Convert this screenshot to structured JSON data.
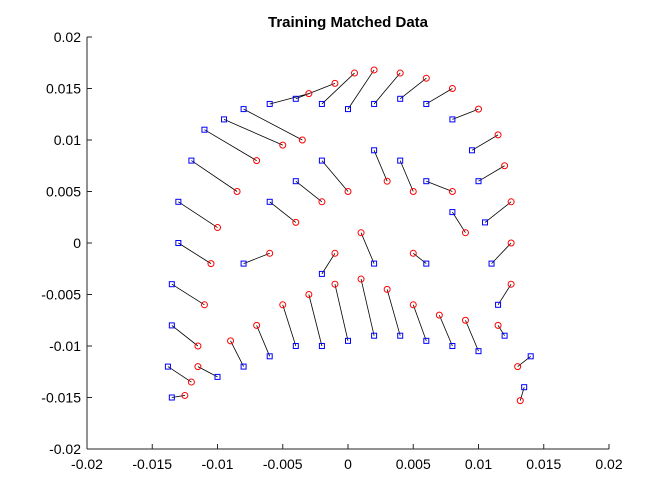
{
  "chart_data": {
    "type": "matched-scatter",
    "title": "Training Matched Data",
    "xlim": [
      -0.02,
      0.02
    ],
    "ylim": [
      -0.02,
      0.02
    ],
    "xticks": [
      -0.02,
      -0.015,
      -0.01,
      -0.005,
      0,
      0.005,
      0.01,
      0.015,
      0.02
    ],
    "yticks": [
      -0.02,
      -0.015,
      -0.01,
      -0.005,
      0,
      0.005,
      0.01,
      0.015,
      0.02
    ],
    "line_color": "#000000",
    "series": [
      {
        "marker": "square",
        "color": "#0000ff",
        "x": [
          -0.0135,
          -0.0138,
          -0.0135,
          -0.0135,
          -0.013,
          -0.013,
          -0.012,
          -0.011,
          -0.0095,
          -0.008,
          -0.006,
          -0.004,
          -0.002,
          0,
          0.002,
          0.004,
          0.006,
          0.008,
          0.0095,
          0.01,
          0.0105,
          0.011,
          0.0115,
          0.012,
          0.014,
          0.0135,
          0.01,
          0.008,
          0.006,
          0.004,
          0.002,
          0,
          -0.002,
          -0.004,
          -0.006,
          -0.008,
          -0.01,
          -0.008,
          -0.006,
          -0.004,
          -0.002,
          0.002,
          0.004,
          0.006,
          0.008,
          0.006,
          0.002,
          -0.002
        ],
        "values": [
          -0.015,
          -0.012,
          -0.008,
          -0.004,
          0,
          0.004,
          0.008,
          0.011,
          0.012,
          0.013,
          0.0135,
          0.014,
          0.0135,
          0.013,
          0.0135,
          0.014,
          0.0135,
          0.012,
          0.009,
          0.006,
          0.002,
          -0.002,
          -0.006,
          -0.009,
          -0.011,
          -0.014,
          -0.0105,
          -0.01,
          -0.0095,
          -0.009,
          -0.009,
          -0.0095,
          -0.01,
          -0.01,
          -0.011,
          -0.012,
          -0.013,
          -0.002,
          0.004,
          0.006,
          0.008,
          0.009,
          0.008,
          0.006,
          0.003,
          -0.002,
          -0.002,
          -0.003
        ]
      },
      {
        "marker": "circle",
        "color": "#ff0000",
        "x": [
          -0.0125,
          -0.012,
          -0.0115,
          -0.011,
          -0.0105,
          -0.01,
          -0.0085,
          -0.007,
          -0.005,
          -0.0035,
          -0.003,
          -0.001,
          0.0005,
          0.002,
          0.004,
          0.006,
          0.008,
          0.01,
          0.0115,
          0.012,
          0.0125,
          0.0125,
          0.0125,
          0.0115,
          0.013,
          0.0132,
          0.009,
          0.007,
          0.005,
          0.003,
          0.001,
          -0.001,
          -0.003,
          -0.005,
          -0.007,
          -0.009,
          -0.0115,
          -0.006,
          -0.004,
          -0.002,
          0,
          0.003,
          0.005,
          0.008,
          0.009,
          0.005,
          0.001,
          -0.001
        ],
        "values": [
          -0.0148,
          -0.0135,
          -0.01,
          -0.006,
          -0.002,
          0.0015,
          0.005,
          0.008,
          0.0095,
          0.01,
          0.0145,
          0.0155,
          0.0165,
          0.0168,
          0.0165,
          0.016,
          0.015,
          0.013,
          0.0105,
          0.0075,
          0.004,
          0,
          -0.004,
          -0.008,
          -0.012,
          -0.0153,
          -0.0075,
          -0.007,
          -0.006,
          -0.0045,
          -0.0035,
          -0.004,
          -0.005,
          -0.006,
          -0.008,
          -0.0095,
          -0.012,
          -0.001,
          0.002,
          0.004,
          0.005,
          0.006,
          0.005,
          0.005,
          0.001,
          -0.001,
          0.001,
          -0.001
        ]
      }
    ]
  }
}
